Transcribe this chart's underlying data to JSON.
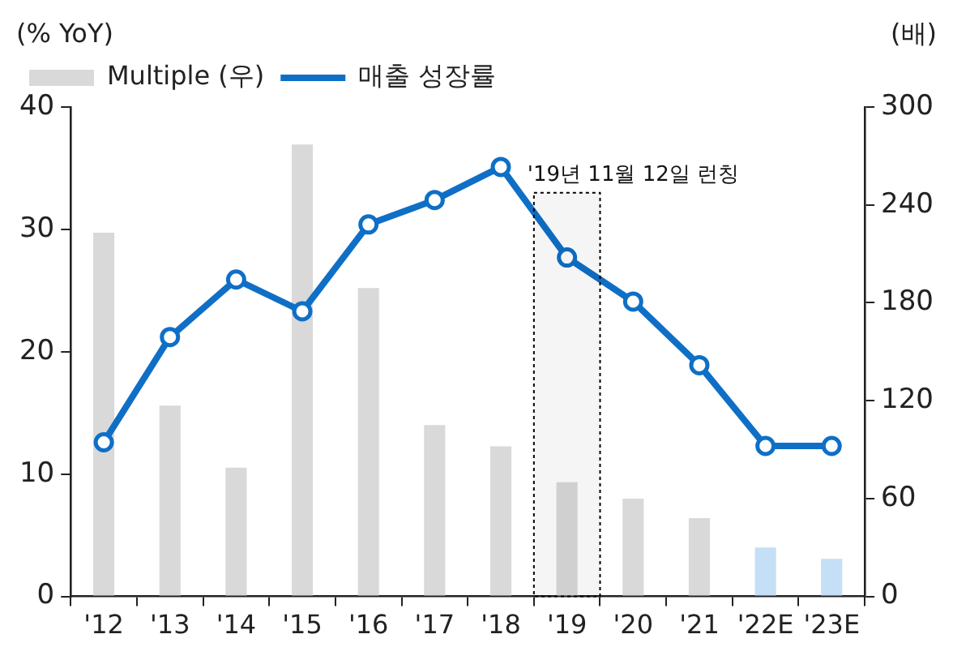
{
  "chart_data": {
    "type": "bar",
    "ylabel": "(% YoY)",
    "y2label": "(배)",
    "categories": [
      "'12",
      "'13",
      "'14",
      "'15",
      "'16",
      "'17",
      "'18",
      "'19",
      "'20",
      "'21",
      "'22E",
      "'23E"
    ],
    "series": [
      {
        "name": "Multiple (우)",
        "axis": "y2",
        "color": "#d9d9d9",
        "colors": [
          "#d9d9d9",
          "#d9d9d9",
          "#d9d9d9",
          "#d9d9d9",
          "#d9d9d9",
          "#d9d9d9",
          "#d9d9d9",
          "#d9d9d9",
          "#d9d9d9",
          "#d9d9d9",
          "#c5dff6",
          "#c5dff6"
        ],
        "values": [
          223,
          117,
          79,
          277,
          189,
          105,
          92,
          70,
          60,
          48,
          30,
          23
        ]
      },
      {
        "name": "매출 성장률",
        "type": "line",
        "color": "#0f6fc6",
        "marker": "circle",
        "values": [
          12.6,
          21.2,
          25.9,
          23.3,
          30.4,
          32.4,
          35.1,
          27.7,
          24.1,
          18.9,
          12.3,
          12.3
        ]
      }
    ],
    "ylim": [
      0,
      40
    ],
    "yticks": [
      0,
      10,
      20,
      30,
      40
    ],
    "y2lim": [
      0,
      300
    ],
    "y2ticks": [
      0,
      60,
      120,
      180,
      240,
      300
    ],
    "bands": [
      {
        "axis": "x",
        "from": "'19",
        "to": "'19",
        "color": "#000000"
      }
    ],
    "annotations": [
      "'19년 11월 12일 런칭"
    ],
    "grid": false,
    "legend": "top left"
  }
}
